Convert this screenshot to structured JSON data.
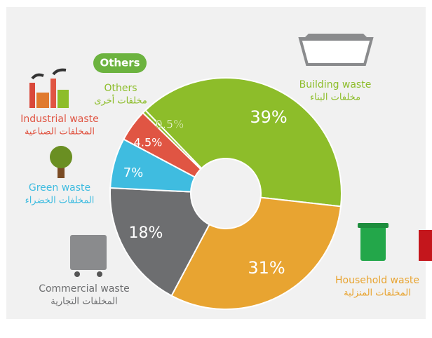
{
  "chart_data": {
    "type": "pie",
    "donut": true,
    "badge": "Others",
    "categories": [
      "Building waste",
      "Household waste",
      "Commercial waste",
      "Green waste",
      "Industrial waste",
      "Others"
    ],
    "categories_ar": [
      "مخلفات البناء",
      "المخلفات المنزلية",
      "المخلفات التجارية",
      "المخلفات الخضراء",
      "المخلفات الصناعية",
      "مخلفات أخرى"
    ],
    "values": [
      39,
      31,
      18,
      7,
      4.5,
      0.5
    ],
    "value_labels": [
      "39%",
      "31%",
      "18%",
      "7%",
      "4.5%",
      "0.5%"
    ],
    "colors": [
      "#8dbd2a",
      "#e8a431",
      "#6d6e70",
      "#3fbce0",
      "#e05543",
      "#8dbd2a"
    ]
  }
}
